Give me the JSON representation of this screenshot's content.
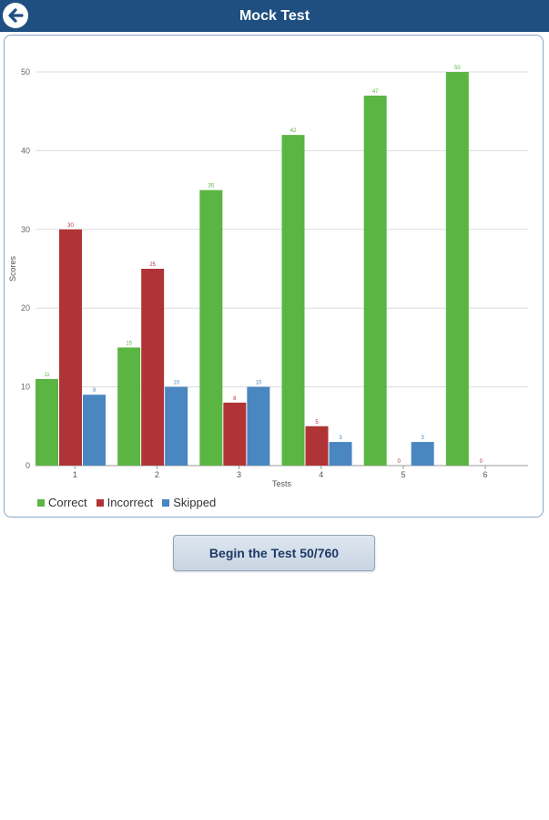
{
  "header": {
    "title": "Mock Test"
  },
  "begin_button": {
    "label": "Begin the Test 50/760"
  },
  "chart_data": {
    "type": "bar",
    "categories": [
      "1",
      "2",
      "3",
      "4",
      "5",
      "6"
    ],
    "series": [
      {
        "name": "Correct",
        "values": [
          11,
          15,
          35,
          42,
          47,
          50
        ],
        "color": "#5bb543"
      },
      {
        "name": "Incorrect",
        "values": [
          30,
          25,
          8,
          5,
          0,
          0
        ],
        "color": "#b03436"
      },
      {
        "name": "Skipped",
        "values": [
          9,
          10,
          10,
          3,
          3,
          null
        ],
        "color": "#4a86c0"
      }
    ],
    "xlabel": "Tests",
    "ylabel": "Scores",
    "ylim": [
      0,
      50
    ],
    "yticks": [
      0,
      10,
      20,
      30,
      40,
      50
    ],
    "grid": true,
    "legend_position": "bottom-left"
  }
}
